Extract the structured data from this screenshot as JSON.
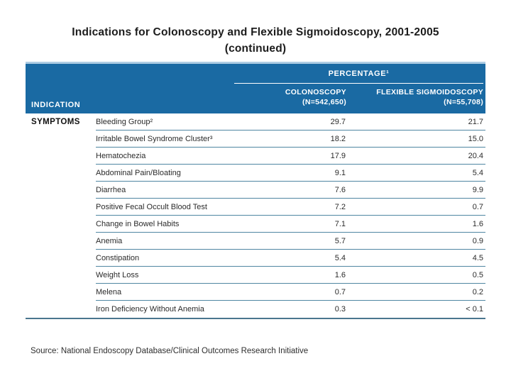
{
  "slide": {
    "title_line1": "Indications for Colonoscopy and Flexible Sigmoidoscopy, 2001-2005",
    "title_line2": "(continued)",
    "source": "Source: National Endoscopy Database/Clinical Outcomes Research Initiative"
  },
  "colors": {
    "header_blue": "#1a6aa3",
    "header_top_accent": "#aecde4",
    "row_separator": "#4f86a2",
    "table_bottom_border": "#4a768e"
  },
  "chart_data": {
    "type": "table",
    "title": "Indications for Colonoscopy and Flexible Sigmoidoscopy, 2001-2005 (continued)",
    "group_header": "PERCENTAGE¹",
    "indication_header": "INDICATION",
    "category": "SYMPTOMS",
    "columns": [
      {
        "label": "COLONOSCOPY",
        "sublabel": "(N=542,650)"
      },
      {
        "label": "FLEXIBLE SIGMOIDOSCOPY",
        "sublabel": "(N=55,708)"
      }
    ],
    "rows": [
      {
        "label": "Bleeding Group²",
        "colonoscopy": "29.7",
        "flexible_sigmoidoscopy": "21.7"
      },
      {
        "label": "Irritable Bowel Syndrome Cluster³",
        "colonoscopy": "18.2",
        "flexible_sigmoidoscopy": "15.0"
      },
      {
        "label": "Hematochezia",
        "colonoscopy": "17.9",
        "flexible_sigmoidoscopy": "20.4"
      },
      {
        "label": "Abdominal Pain/Bloating",
        "colonoscopy": "9.1",
        "flexible_sigmoidoscopy": "5.4"
      },
      {
        "label": "Diarrhea",
        "colonoscopy": "7.6",
        "flexible_sigmoidoscopy": "9.9"
      },
      {
        "label": "Positive Fecal Occult Blood Test",
        "colonoscopy": "7.2",
        "flexible_sigmoidoscopy": "0.7"
      },
      {
        "label": "Change in Bowel Habits",
        "colonoscopy": "7.1",
        "flexible_sigmoidoscopy": "1.6"
      },
      {
        "label": "Anemia",
        "colonoscopy": "5.7",
        "flexible_sigmoidoscopy": "0.9"
      },
      {
        "label": "Constipation",
        "colonoscopy": "5.4",
        "flexible_sigmoidoscopy": "4.5"
      },
      {
        "label": "Weight Loss",
        "colonoscopy": "1.6",
        "flexible_sigmoidoscopy": "0.5"
      },
      {
        "label": "Melena",
        "colonoscopy": "0.7",
        "flexible_sigmoidoscopy": "0.2"
      },
      {
        "label": "Iron Deficiency Without Anemia",
        "colonoscopy": "0.3",
        "flexible_sigmoidoscopy": "< 0.1"
      }
    ]
  }
}
